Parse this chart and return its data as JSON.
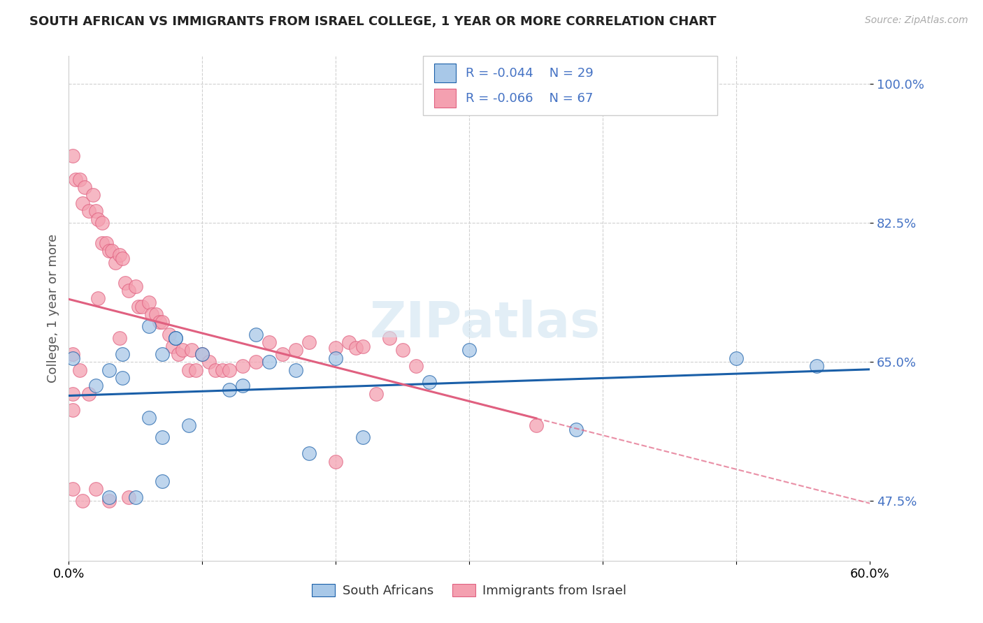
{
  "title": "SOUTH AFRICAN VS IMMIGRANTS FROM ISRAEL COLLEGE, 1 YEAR OR MORE CORRELATION CHART",
  "source": "Source: ZipAtlas.com",
  "ylabel": "College, 1 year or more",
  "xmin": 0.0,
  "xmax": 0.6,
  "ymin": 0.4,
  "ymax": 1.035,
  "yticks": [
    0.475,
    0.65,
    0.825,
    1.0
  ],
  "ytick_labels": [
    "47.5%",
    "65.0%",
    "82.5%",
    "100.0%"
  ],
  "xticks": [
    0.0,
    0.1,
    0.2,
    0.3,
    0.4,
    0.5,
    0.6
  ],
  "xtick_labels": [
    "0.0%",
    "",
    "",
    "",
    "",
    "",
    "60.0%"
  ],
  "legend_R_blue": "-0.044",
  "legend_N_blue": "29",
  "legend_R_pink": "-0.066",
  "legend_N_pink": "67",
  "legend_label_blue": "South Africans",
  "legend_label_pink": "Immigrants from Israel",
  "blue_color": "#a8c8e8",
  "pink_color": "#f4a0b0",
  "blue_line_color": "#1a5fa8",
  "pink_line_color": "#e06080",
  "text_color": "#4472c4",
  "watermark": "ZIPatlas",
  "sa_x": [
    0.003,
    0.38,
    0.27,
    0.17,
    0.14,
    0.07,
    0.04,
    0.03,
    0.08,
    0.12,
    0.09,
    0.05,
    0.02,
    0.18,
    0.1,
    0.06,
    0.15,
    0.56,
    0.07,
    0.22,
    0.03,
    0.04,
    0.06,
    0.08,
    0.3,
    0.5,
    0.07,
    0.13,
    0.2
  ],
  "sa_y": [
    0.655,
    0.565,
    0.625,
    0.64,
    0.685,
    0.66,
    0.66,
    0.64,
    0.68,
    0.615,
    0.57,
    0.48,
    0.62,
    0.535,
    0.66,
    0.695,
    0.65,
    0.645,
    0.5,
    0.555,
    0.48,
    0.63,
    0.58,
    0.68,
    0.665,
    0.655,
    0.555,
    0.62,
    0.655
  ],
  "israel_x": [
    0.003,
    0.005,
    0.008,
    0.01,
    0.012,
    0.015,
    0.018,
    0.02,
    0.022,
    0.025,
    0.025,
    0.028,
    0.03,
    0.032,
    0.035,
    0.038,
    0.04,
    0.042,
    0.045,
    0.05,
    0.052,
    0.055,
    0.06,
    0.062,
    0.065,
    0.068,
    0.07,
    0.075,
    0.078,
    0.082,
    0.085,
    0.09,
    0.092,
    0.095,
    0.1,
    0.105,
    0.11,
    0.115,
    0.12,
    0.13,
    0.14,
    0.15,
    0.16,
    0.17,
    0.18,
    0.2,
    0.21,
    0.215,
    0.22,
    0.23,
    0.25,
    0.26,
    0.003,
    0.008,
    0.015,
    0.022,
    0.038,
    0.003,
    0.01,
    0.02,
    0.03,
    0.045,
    0.2,
    0.35,
    0.003,
    0.003,
    0.24
  ],
  "israel_y": [
    0.91,
    0.88,
    0.88,
    0.85,
    0.87,
    0.84,
    0.86,
    0.84,
    0.83,
    0.825,
    0.8,
    0.8,
    0.79,
    0.79,
    0.775,
    0.785,
    0.78,
    0.75,
    0.74,
    0.745,
    0.72,
    0.72,
    0.725,
    0.71,
    0.71,
    0.7,
    0.7,
    0.685,
    0.67,
    0.66,
    0.665,
    0.64,
    0.665,
    0.64,
    0.66,
    0.65,
    0.64,
    0.64,
    0.64,
    0.645,
    0.65,
    0.675,
    0.66,
    0.665,
    0.675,
    0.668,
    0.675,
    0.668,
    0.67,
    0.61,
    0.665,
    0.645,
    0.66,
    0.64,
    0.61,
    0.73,
    0.68,
    0.49,
    0.475,
    0.49,
    0.475,
    0.48,
    0.525,
    0.57,
    0.61,
    0.59,
    0.68
  ]
}
